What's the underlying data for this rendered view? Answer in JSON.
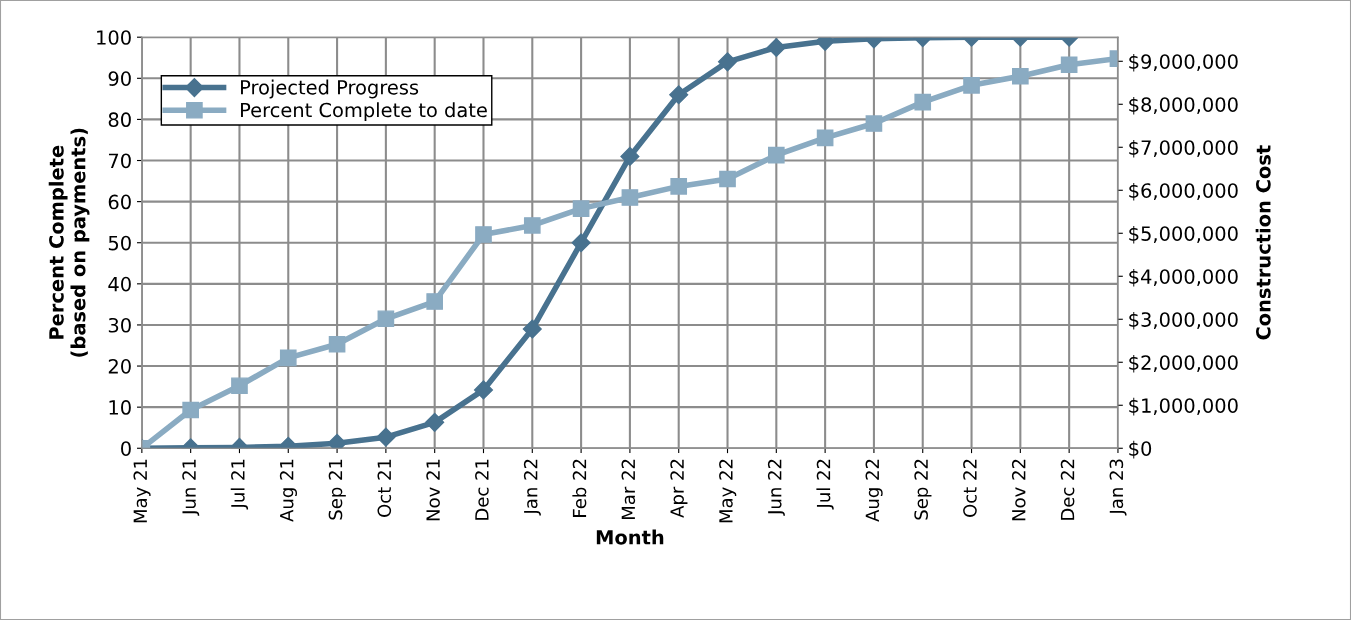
{
  "chart_data": {
    "type": "line",
    "xlabel": "Month",
    "ylabel": "Percent Complete\n(based on payments)",
    "y2label": "Construction Cost",
    "categories": [
      "May 21",
      "Jun 21",
      "Jul 21",
      "Aug 21",
      "Sep 21",
      "Oct 21",
      "Nov 21",
      "Dec 21",
      "Jan 22",
      "Feb 22",
      "Mar 22",
      "Apr 22",
      "May 22",
      "Jun 22",
      "Jul 22",
      "Aug 22",
      "Sep 22",
      "Oct 22",
      "Nov 22",
      "Dec 22",
      "Jan 23"
    ],
    "series": [
      {
        "name": "Projected Progress",
        "color": "#48728f",
        "marker": "diamond",
        "values": [
          0,
          0.1,
          0.2,
          0.5,
          1.2,
          2.7,
          6.3,
          14.2,
          29,
          50,
          71,
          86,
          94,
          97.5,
          99,
          99.6,
          99.9,
          100,
          100,
          100,
          null
        ]
      },
      {
        "name": "Percent Complete to date",
        "color": "#8aabc2",
        "marker": "square",
        "values": [
          0,
          9.3,
          15.2,
          22,
          25.3,
          31.5,
          35.7,
          52,
          54.2,
          58.3,
          61,
          63.7,
          65.5,
          71.3,
          75.5,
          79,
          84.2,
          88.3,
          90.5,
          93.3,
          94.8
        ]
      }
    ],
    "ylim": [
      0,
      100
    ],
    "yticks": [
      0,
      10,
      20,
      30,
      40,
      50,
      60,
      70,
      80,
      90,
      100
    ],
    "y2lim": [
      0,
      9560000
    ],
    "y2ticks": [
      {
        "value": 0,
        "label": "$0"
      },
      {
        "value": 1000000,
        "label": "$1,000,000"
      },
      {
        "value": 2000000,
        "label": "$2,000,000"
      },
      {
        "value": 3000000,
        "label": "$3,000,000"
      },
      {
        "value": 4000000,
        "label": "$4,000,000"
      },
      {
        "value": 5000000,
        "label": "$5,000,000"
      },
      {
        "value": 6000000,
        "label": "$6,000,000"
      },
      {
        "value": 7000000,
        "label": "$7,000,000"
      },
      {
        "value": 8000000,
        "label": "$8,000,000"
      },
      {
        "value": 9000000,
        "label": "$9,000,000"
      }
    ],
    "grid": true,
    "legend": "top left",
    "line_style": "solid"
  }
}
